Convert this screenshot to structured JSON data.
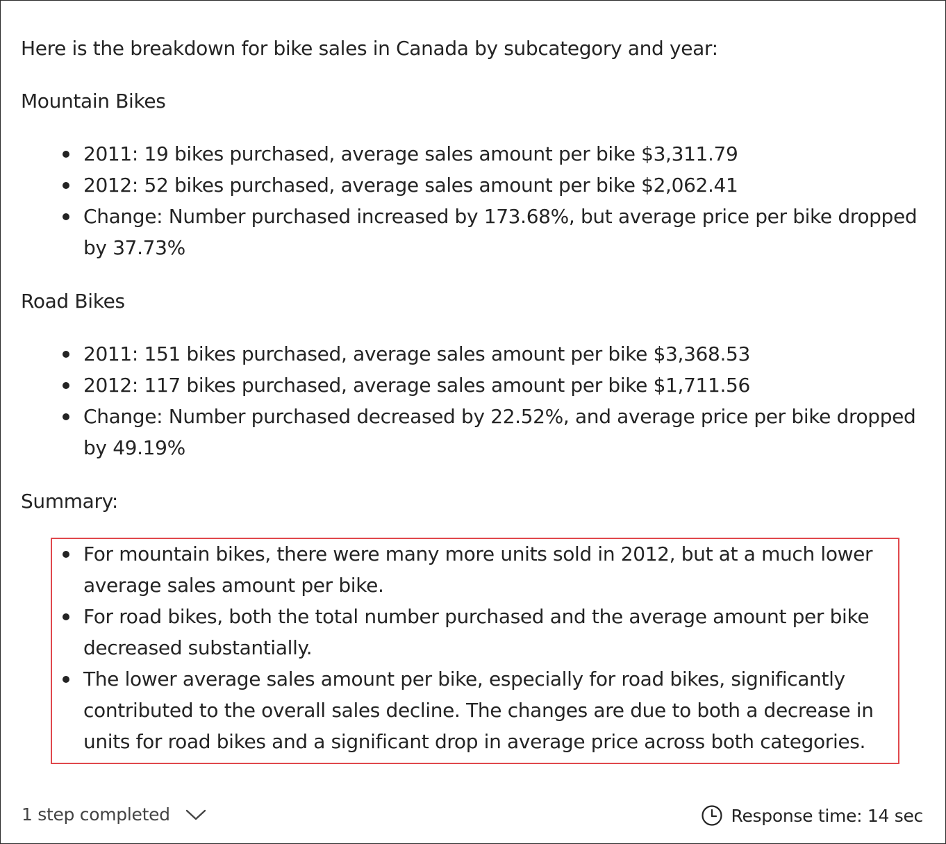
{
  "intro": "Here is the breakdown for bike sales in Canada by subcategory and year:",
  "sections": [
    {
      "heading": "Mountain Bikes",
      "bullets": [
        "2011: 19 bikes purchased, average sales amount per bike $3,311.79",
        "2012: 52 bikes purchased, average sales amount per bike $2,062.41",
        "Change: Number purchased increased by 173.68%, but average price per bike dropped by 37.73%"
      ]
    },
    {
      "heading": "Road Bikes",
      "bullets": [
        "2011: 151 bikes purchased, average sales amount per bike $3,368.53",
        "2012: 117 bikes purchased, average sales amount per bike $1,711.56",
        "Change: Number purchased decreased by 22.52%, and average price per bike dropped by 49.19%"
      ]
    }
  ],
  "summary": {
    "heading": "Summary:",
    "bullets": [
      "For mountain bikes, there were many more units sold in 2012, but at a much lower average sales amount per bike.",
      "For road bikes, both the total number purchased and the average amount per bike decreased substantially.",
      "The lower average sales amount per bike, especially for road bikes, significantly contributed to the overall sales decline. The changes are due to both a decrease in units for road bikes and a significant drop in average price across both categories."
    ],
    "highlight_color": "#e0484c"
  },
  "footer": {
    "steps_label": "1 step completed",
    "steps_icon": "chevron-down-icon",
    "response_label": "Response time: 14 sec",
    "response_icon": "clock-icon"
  }
}
